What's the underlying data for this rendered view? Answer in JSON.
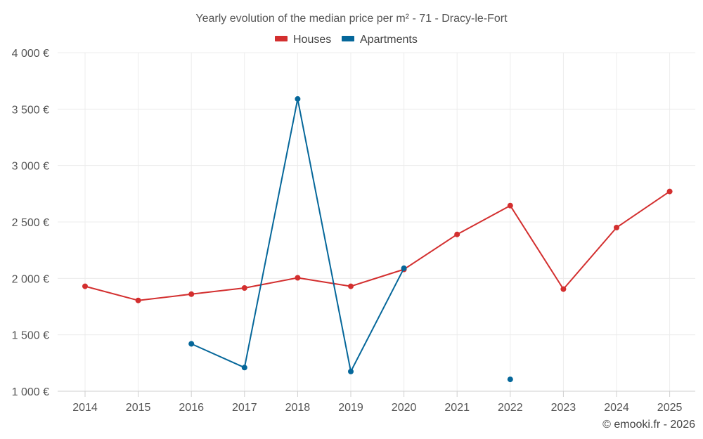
{
  "chart_data": {
    "type": "line",
    "title": "Yearly evolution of the median price per m² - 71 - Dracy-le-Fort",
    "xlabel": "",
    "ylabel": "",
    "categories": [
      "2014",
      "2015",
      "2016",
      "2017",
      "2018",
      "2019",
      "2020",
      "2021",
      "2022",
      "2023",
      "2024",
      "2025"
    ],
    "ylim": [
      1000,
      4000
    ],
    "y_ticks": [
      1000,
      1500,
      2000,
      2500,
      3000,
      3500,
      4000
    ],
    "y_tick_labels": [
      "1 000 €",
      "1 500 €",
      "2 000 €",
      "2 500 €",
      "3 000 €",
      "3 500 €",
      "4 000 €"
    ],
    "grid": true,
    "legend_position": "top-center",
    "series": [
      {
        "name": "Houses",
        "color": "#d32f2f",
        "values": [
          1930,
          1805,
          1860,
          1915,
          2005,
          1930,
          2080,
          2390,
          2645,
          1905,
          2450,
          2770
        ]
      },
      {
        "name": "Apartments",
        "color": "#05679a",
        "values": [
          null,
          null,
          1420,
          1210,
          3590,
          1175,
          2090,
          null,
          1105,
          null,
          null,
          null
        ]
      }
    ],
    "credit": "© emooki.fr - 2026"
  }
}
